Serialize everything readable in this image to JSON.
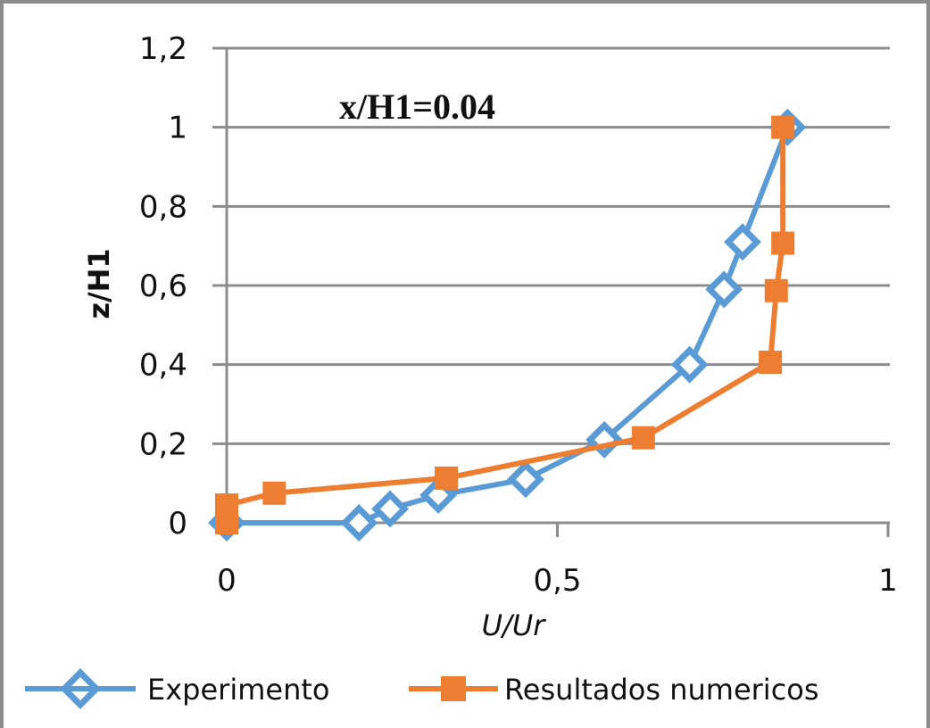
{
  "chart_data": {
    "type": "line",
    "title": "",
    "annotation": "x/H1=0.04",
    "xlabel": "U/Ur",
    "ylabel": "z/H1",
    "xlim": [
      0,
      1
    ],
    "ylim": [
      0,
      1.2
    ],
    "x_ticks": [
      "0",
      "0,5",
      "1"
    ],
    "y_ticks": [
      "0",
      "0,2",
      "0,4",
      "0,6",
      "0,8",
      "1",
      "1,2"
    ],
    "grid": "horizontal",
    "legend_position": "bottom",
    "series": [
      {
        "name": "Experimento",
        "color": "#5b9bd5",
        "marker": "diamond-hollow",
        "points": [
          [
            0.0,
            0.0
          ],
          [
            0.2,
            0.0
          ],
          [
            0.247,
            0.035
          ],
          [
            0.32,
            0.07
          ],
          [
            0.452,
            0.11
          ],
          [
            0.571,
            0.21
          ],
          [
            0.7,
            0.4
          ],
          [
            0.752,
            0.59
          ],
          [
            0.78,
            0.71
          ],
          [
            0.848,
            1.0
          ]
        ]
      },
      {
        "name": "Resultados numericos",
        "color": "#ed7d31",
        "marker": "square",
        "points": [
          [
            0.0,
            0.0
          ],
          [
            0.0,
            0.045
          ],
          [
            0.072,
            0.075
          ],
          [
            0.332,
            0.113
          ],
          [
            0.63,
            0.215
          ],
          [
            0.822,
            0.406
          ],
          [
            0.831,
            0.587
          ],
          [
            0.841,
            0.707
          ],
          [
            0.841,
            1.0
          ]
        ]
      }
    ]
  },
  "legend": {
    "items": [
      "Experimento",
      "Resultados numericos"
    ]
  }
}
